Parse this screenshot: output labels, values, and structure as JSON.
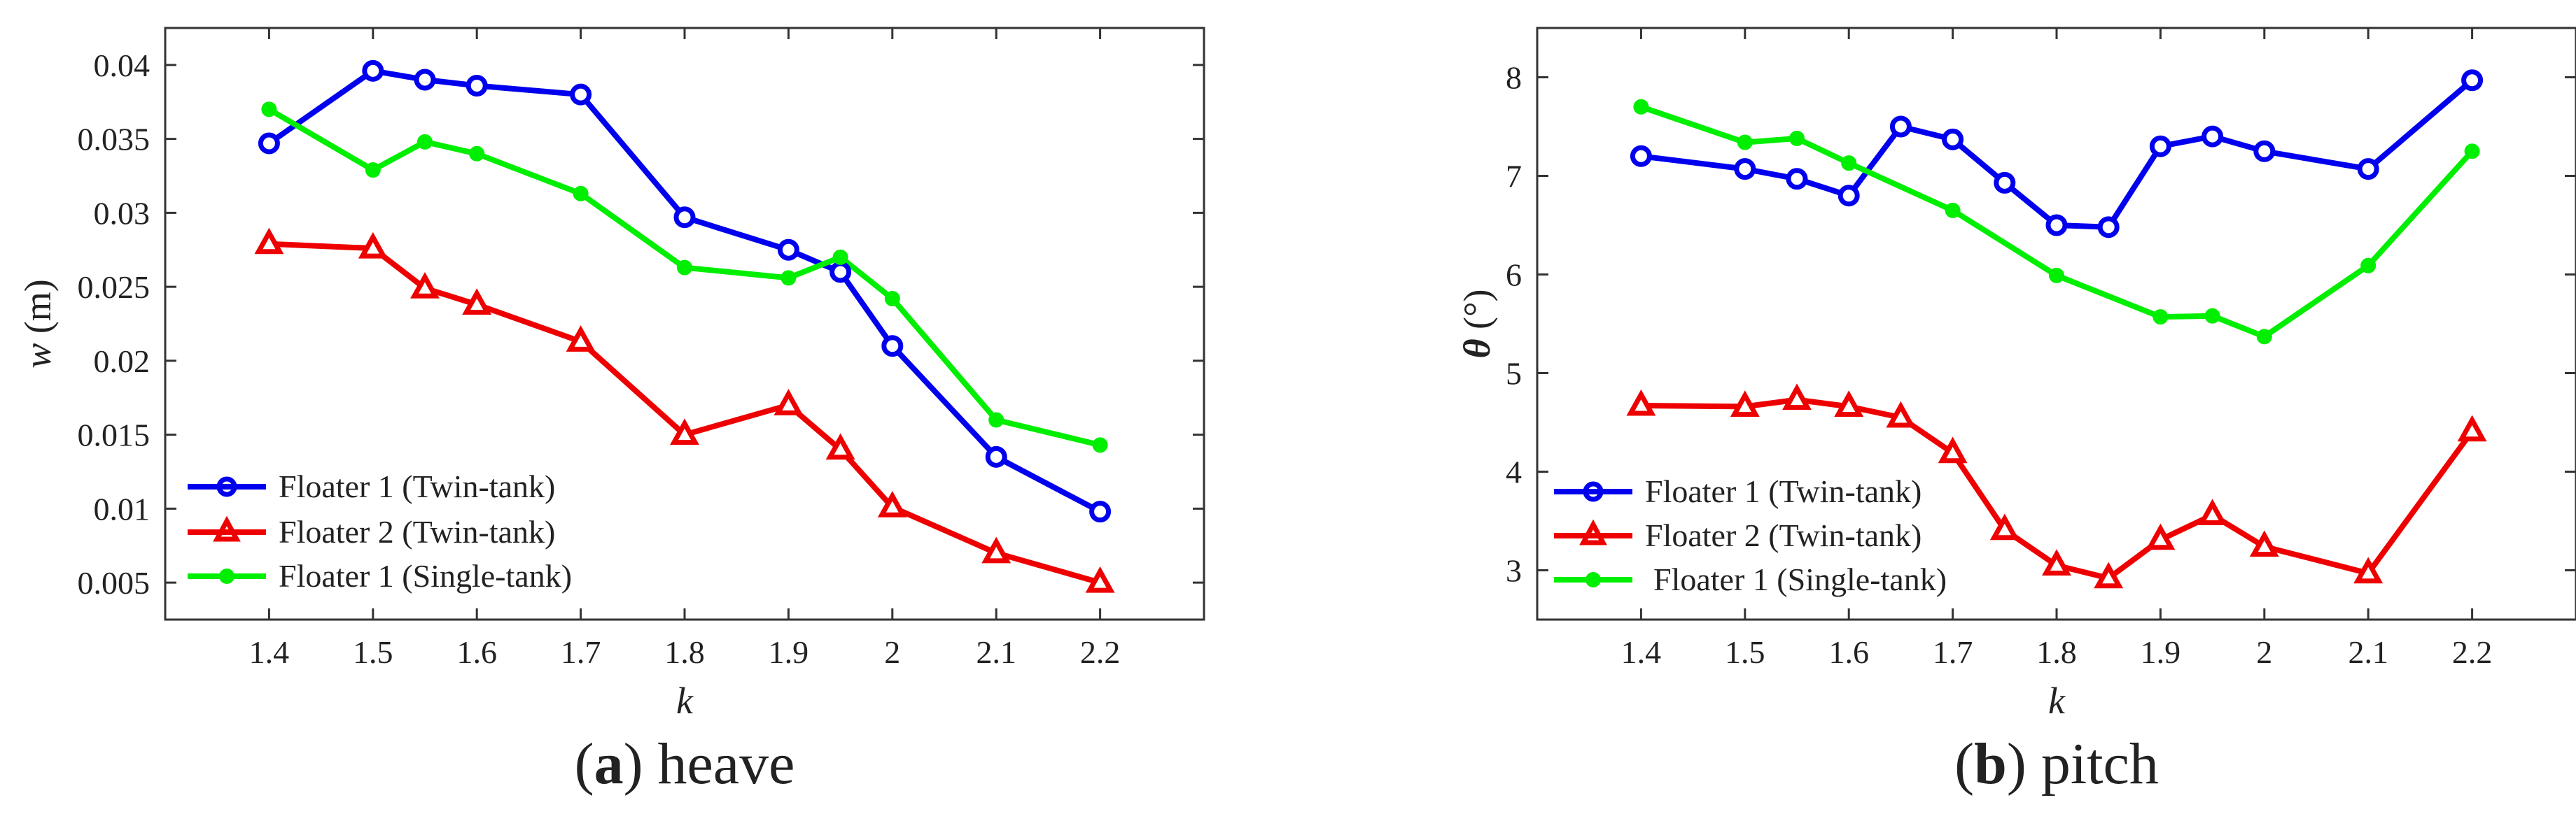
{
  "chart_data": [
    {
      "id": "heave",
      "type": "line",
      "caption": {
        "letter": "a",
        "label": "heave"
      },
      "xlabel": "k",
      "ylabel_var": "w",
      "ylabel_unit": " (m)",
      "xlim": [
        1.3,
        2.3
      ],
      "ylim": [
        0.0025,
        0.0425
      ],
      "xticks": [
        1.4,
        1.5,
        1.6,
        1.7,
        1.8,
        1.9,
        2.0,
        2.1,
        2.2
      ],
      "xtick_labels": [
        "1.4",
        "1.5",
        "1.6",
        "1.7",
        "1.8",
        "1.9",
        "2",
        "2.1",
        "2.2"
      ],
      "yticks": [
        0.005,
        0.01,
        0.015,
        0.02,
        0.025,
        0.03,
        0.035,
        0.04
      ],
      "ytick_labels": [
        "0.005",
        "0.01",
        "0.015",
        "0.02",
        "0.025",
        "0.03",
        "0.035",
        "0.04"
      ],
      "legend_position": "bottom-left",
      "series": [
        {
          "name": "Floater 1 (Twin-tank)",
          "color": "#0000ee",
          "marker": "circle",
          "x": [
            1.4,
            1.5,
            1.55,
            1.6,
            1.7,
            1.8,
            1.9,
            1.95,
            2.0,
            2.1,
            2.2
          ],
          "y": [
            0.0347,
            0.0396,
            0.039,
            0.0386,
            0.038,
            0.0297,
            0.0275,
            0.026,
            0.021,
            0.0135,
            0.0098
          ]
        },
        {
          "name": "Floater 2 (Twin-tank)",
          "color": "#ee0000",
          "marker": "triangle",
          "x": [
            1.4,
            1.5,
            1.55,
            1.6,
            1.7,
            1.8,
            1.9,
            1.95,
            2.0,
            2.1,
            2.2
          ],
          "y": [
            0.0279,
            0.0276,
            0.0249,
            0.0238,
            0.0213,
            0.015,
            0.017,
            0.014,
            0.0101,
            0.007,
            0.005
          ]
        },
        {
          "name": "Floater 1 (Single-tank)",
          "color": "#00ee00",
          "marker": "dot",
          "x": [
            1.4,
            1.5,
            1.55,
            1.6,
            1.7,
            1.8,
            1.9,
            1.95,
            2.0,
            2.1,
            2.2
          ],
          "y": [
            0.037,
            0.0329,
            0.0348,
            0.034,
            0.0313,
            0.0263,
            0.0256,
            0.027,
            0.0242,
            0.016,
            0.0143
          ]
        }
      ]
    },
    {
      "id": "pitch",
      "type": "line",
      "caption": {
        "letter": "b",
        "label": "pitch"
      },
      "xlabel": "k",
      "ylabel_var": "θ",
      "ylabel_unit": " (°)",
      "xlim": [
        1.3,
        2.3
      ],
      "ylim": [
        2.5,
        8.5
      ],
      "xticks": [
        1.4,
        1.5,
        1.6,
        1.7,
        1.8,
        1.9,
        2.0,
        2.1,
        2.2
      ],
      "xtick_labels": [
        "1.4",
        "1.5",
        "1.6",
        "1.7",
        "1.8",
        "1.9",
        "2",
        "2.1",
        "2.2"
      ],
      "yticks": [
        3,
        4,
        5,
        6,
        7,
        8
      ],
      "ytick_labels": [
        "3",
        "4",
        "5",
        "6",
        "7",
        "8"
      ],
      "legend_position": "bottom-left",
      "series": [
        {
          "name": "Floater 1 (Twin-tank)",
          "color": "#0000ee",
          "marker": "circle",
          "x": [
            1.4,
            1.5,
            1.55,
            1.6,
            1.65,
            1.7,
            1.75,
            1.8,
            1.85,
            1.9,
            1.95,
            2.0,
            2.1,
            2.2
          ],
          "y": [
            7.2,
            7.07,
            6.97,
            6.8,
            7.5,
            7.37,
            6.93,
            6.5,
            6.48,
            7.3,
            7.4,
            7.25,
            7.07,
            7.97
          ]
        },
        {
          "name": "Floater 2 (Twin-tank)",
          "color": "#ee0000",
          "marker": "triangle",
          "x": [
            1.4,
            1.5,
            1.55,
            1.6,
            1.65,
            1.7,
            1.75,
            1.8,
            1.85,
            1.9,
            1.95,
            2.0,
            2.1,
            2.2
          ],
          "y": [
            4.67,
            4.66,
            4.73,
            4.66,
            4.55,
            4.19,
            3.41,
            3.05,
            2.92,
            3.31,
            3.56,
            3.24,
            2.97,
            4.41
          ]
        },
        {
          "name": "Floater 1 (Single-tank)",
          "color": "#00ee00",
          "marker": "dot",
          "x": [
            1.4,
            1.5,
            1.55,
            1.6,
            1.7,
            1.8,
            1.9,
            1.95,
            2.0,
            2.1,
            2.2
          ],
          "y": [
            7.7,
            7.34,
            7.38,
            7.13,
            6.65,
            5.99,
            5.57,
            5.58,
            5.37,
            6.09,
            7.25
          ]
        }
      ]
    }
  ]
}
